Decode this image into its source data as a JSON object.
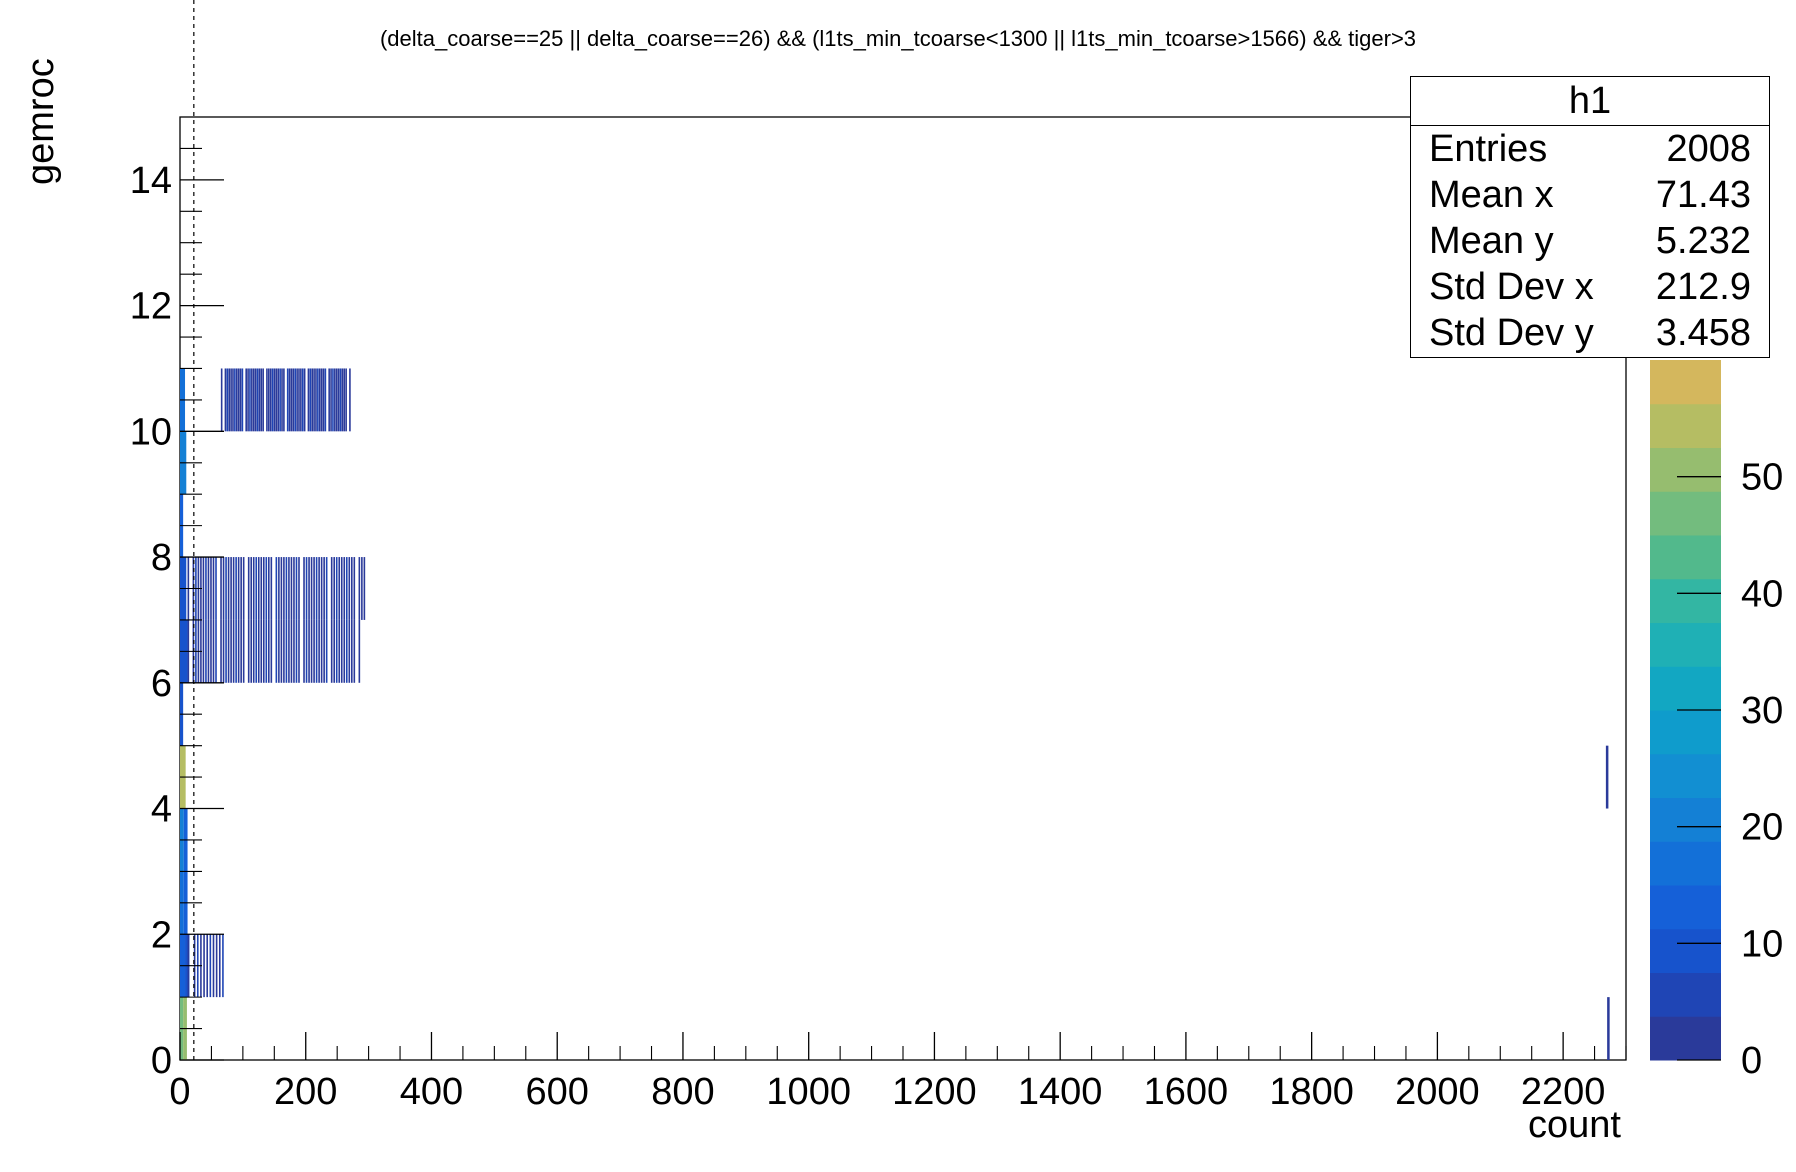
{
  "chart_data": {
    "type": "heatmap",
    "title": "(delta_coarse==25 || delta_coarse==26) && (l1ts_min_tcoarse<1300 || l1ts_min_tcoarse>1566) && tiger>3",
    "xlabel": "count",
    "ylabel": "gemroc",
    "xlim": [
      0,
      2300
    ],
    "ylim": [
      0,
      15
    ],
    "x_ticks": [
      "0",
      "200",
      "400",
      "600",
      "800",
      "1000",
      "1200",
      "1400",
      "1600",
      "1800",
      "2000",
      "2200"
    ],
    "y_ticks": [
      "0",
      "2",
      "4",
      "6",
      "8",
      "10",
      "12",
      "14"
    ],
    "z_ticks": [
      "0",
      "10",
      "20",
      "30",
      "40",
      "50"
    ],
    "zlim": [
      0,
      60
    ],
    "colormap": [
      "#2a3a9a",
      "#1f45b5",
      "#1753cc",
      "#1560d8",
      "#1370d8",
      "#1480d5",
      "#128fd2",
      "#0f9ccc",
      "#12a7c2",
      "#1fb0b5",
      "#33b6a3",
      "#52b98c",
      "#73bc7e",
      "#96bd6f",
      "#b5bd63",
      "#d4b75d"
    ],
    "reference_line_x": 22,
    "cells": [
      {
        "row": 0,
        "x0": 0,
        "x1": 5,
        "z": 45
      },
      {
        "row": 0,
        "x0": 5,
        "x1": 11,
        "z": 52
      },
      {
        "row": 0,
        "x0": 2270,
        "x1": 2274,
        "z": 3
      },
      {
        "row": 1,
        "x0": 0,
        "x1": 8,
        "z": 14
      },
      {
        "row": 1,
        "x0": 8,
        "x1": 15,
        "z": 10
      },
      {
        "row": 2,
        "x0": 0,
        "x1": 6,
        "z": 18
      },
      {
        "row": 2,
        "x0": 6,
        "x1": 12,
        "z": 12
      },
      {
        "row": 3,
        "x0": 0,
        "x1": 6,
        "z": 20
      },
      {
        "row": 3,
        "x0": 6,
        "x1": 12,
        "z": 14
      },
      {
        "row": 4,
        "x0": 0,
        "x1": 9,
        "z": 55
      },
      {
        "row": 4,
        "x0": 2268,
        "x1": 2272,
        "z": 3
      },
      {
        "row": 5,
        "x0": 0,
        "x1": 5,
        "z": 8
      },
      {
        "row": 6,
        "x0": 0,
        "x1": 12,
        "z": 10
      },
      {
        "row": 7,
        "x0": 0,
        "x1": 10,
        "z": 9
      },
      {
        "row": 8,
        "x0": 0,
        "x1": 5,
        "z": 12
      },
      {
        "row": 9,
        "x0": 0,
        "x1": 10,
        "z": 20
      },
      {
        "row": 10,
        "x0": 0,
        "x1": 8,
        "z": 18
      }
    ],
    "sparse_bins": [
      {
        "row": 1,
        "from": 12,
        "to": 76,
        "step": 5,
        "z": 3
      },
      {
        "row": 6,
        "from": 12,
        "to": 285,
        "step": 4,
        "z": 3
      },
      {
        "row": 7,
        "from": 12,
        "to": 295,
        "step": 4,
        "z": 3
      },
      {
        "row": 10,
        "from": 65,
        "to": 270,
        "step": 3,
        "z": 3
      }
    ],
    "stats": {
      "name": "h1",
      "entries_label": "Entries",
      "entries": "2008",
      "mean_x_label": "Mean x",
      "mean_x": "71.43",
      "mean_y_label": "Mean y",
      "mean_y": "5.232",
      "std_x_label": "Std Dev x",
      "std_x": "212.9",
      "std_y_label": "Std Dev y",
      "std_y": "3.458"
    }
  }
}
